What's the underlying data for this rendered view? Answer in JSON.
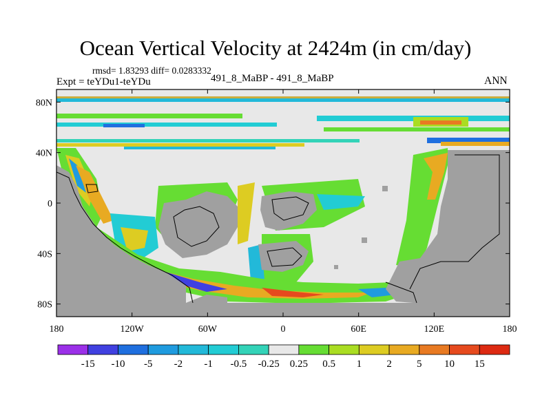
{
  "title": "Ocean Vertical Velocity at 2424m (in cm/day)",
  "stats": "rmsd= 1.83293 diff= 0.0283332",
  "expt": "Expt = teYDu1-teYDu",
  "center_label": "491_8_MaBP - 491_8_MaBP",
  "season": "ANN",
  "map": {
    "projection": "cylindrical equidistant",
    "lon_range": [
      -180,
      180
    ],
    "lat_range": [
      -90,
      90
    ],
    "lon_ticks": [
      {
        "value": -180,
        "label": "180"
      },
      {
        "value": -120,
        "label": "120W"
      },
      {
        "value": -60,
        "label": "60W"
      },
      {
        "value": 0,
        "label": "0"
      },
      {
        "value": 60,
        "label": "60E"
      },
      {
        "value": 120,
        "label": "120E"
      },
      {
        "value": 180,
        "label": "180"
      }
    ],
    "lat_ticks": [
      {
        "value": 80,
        "label": "80N"
      },
      {
        "value": 40,
        "label": "40N"
      },
      {
        "value": 0,
        "label": "0"
      },
      {
        "value": -40,
        "label": "40S"
      },
      {
        "value": -80,
        "label": "80S"
      }
    ],
    "land_color": "#a0a0a0",
    "near_zero_color": "#e8e8e8"
  },
  "colorbar": {
    "levels": [
      "-15",
      "-10",
      "-5",
      "-2",
      "-1",
      "-0.5",
      "-0.25",
      "0.25",
      "0.5",
      "1",
      "2",
      "5",
      "10",
      "15"
    ],
    "colors": [
      "#9b30e8",
      "#4040e0",
      "#1f6fdf",
      "#1f9bdf",
      "#22b9d9",
      "#22ccd4",
      "#33d3b8",
      "#e8e8e8",
      "#66dd33",
      "#aadd22",
      "#ddcc22",
      "#e8aa22",
      "#e87a22",
      "#e64a1e",
      "#dd2a12"
    ]
  }
}
